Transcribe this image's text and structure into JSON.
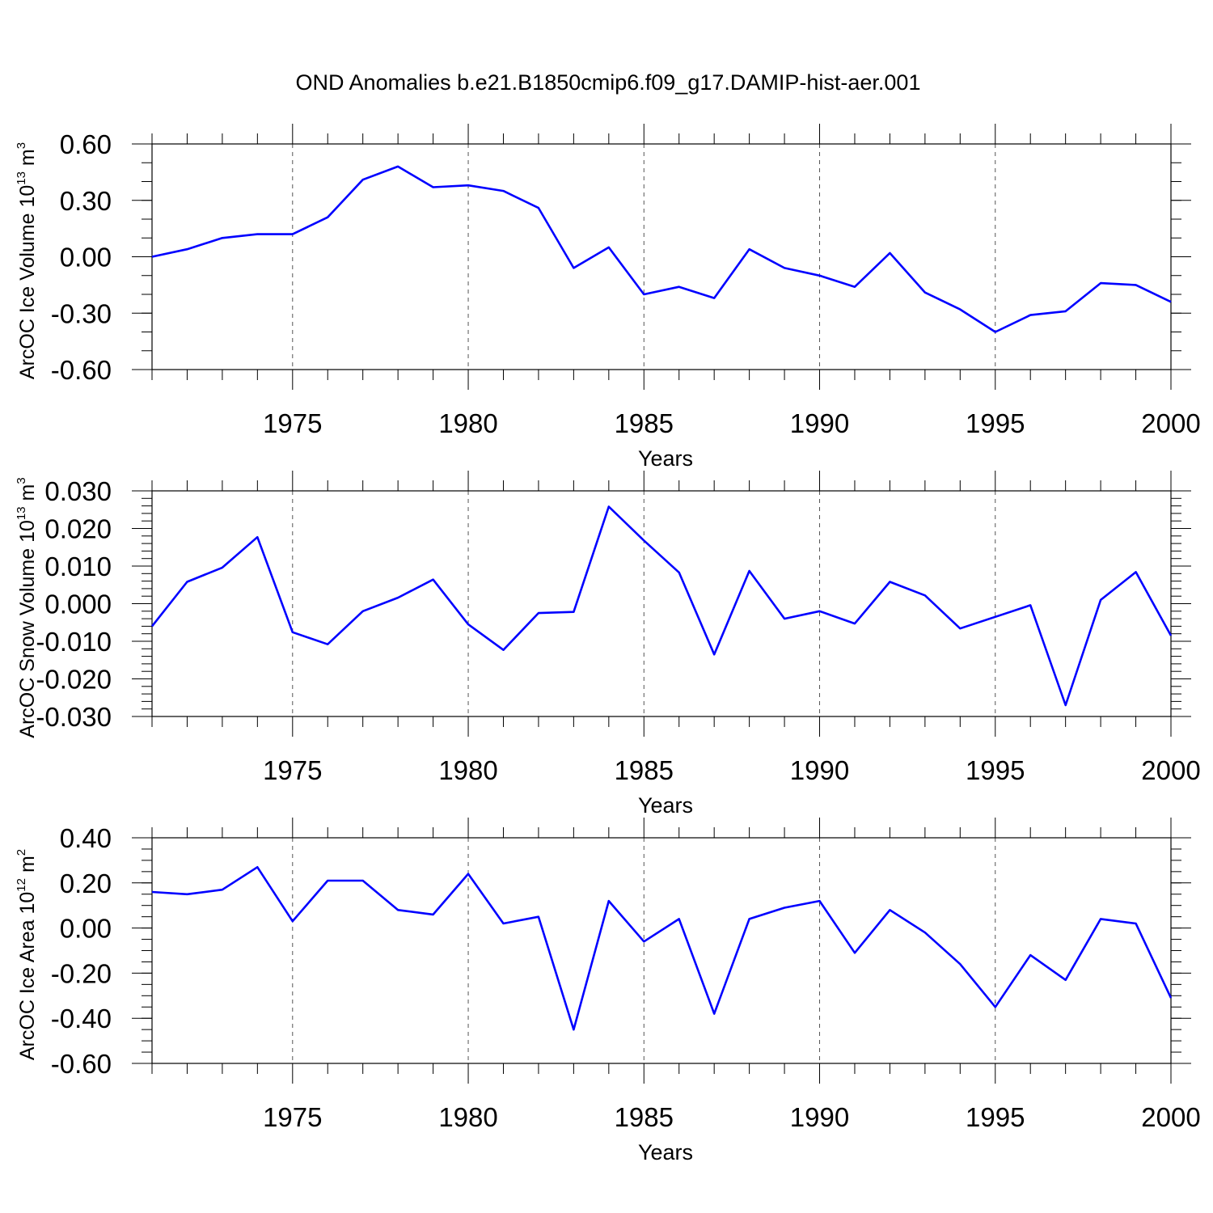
{
  "title": "OND Anomalies b.e21.B1850cmip6.f09_g17.DAMIP-hist-aer.001",
  "chart_data": [
    {
      "type": "line",
      "ylabel": "ArcOC Ice Volume 10",
      "ylabel_sup_exp": "13",
      "ylabel_unit": " m",
      "ylabel_sup_unit": "3",
      "xlabel": "Years",
      "xlim": [
        1971,
        2000
      ],
      "ylim": [
        -0.6,
        0.6
      ],
      "yticks": [
        -0.6,
        -0.3,
        0.0,
        0.3,
        0.6
      ],
      "yticklabels": [
        "-0.60",
        "-0.30",
        "0.00",
        "0.30",
        "0.60"
      ],
      "yminor": 0.1,
      "xticks": [
        1975,
        1980,
        1985,
        1990,
        1995,
        2000
      ],
      "xticklabels": [
        "1975",
        "1980",
        "1985",
        "1990",
        "1995",
        "2000"
      ],
      "grid": "dashed vertical at major x ticks",
      "series_color": "#0000ff",
      "x": [
        1971,
        1972,
        1973,
        1974,
        1975,
        1976,
        1977,
        1978,
        1979,
        1980,
        1981,
        1982,
        1983,
        1984,
        1985,
        1986,
        1987,
        1988,
        1989,
        1990,
        1991,
        1992,
        1993,
        1994,
        1995,
        1996,
        1997,
        1998,
        1999,
        2000
      ],
      "values": [
        0.0,
        0.04,
        0.1,
        0.12,
        0.12,
        0.21,
        0.41,
        0.48,
        0.37,
        0.38,
        0.35,
        0.26,
        -0.06,
        0.05,
        -0.2,
        -0.16,
        -0.22,
        0.04,
        -0.06,
        -0.1,
        -0.16,
        0.02,
        -0.19,
        -0.28,
        -0.4,
        -0.31,
        -0.29,
        -0.14,
        -0.15,
        -0.24
      ]
    },
    {
      "type": "line",
      "ylabel": "ArcOC Snow Volume 10",
      "ylabel_sup_exp": "13",
      "ylabel_unit": " m",
      "ylabel_sup_unit": "3",
      "xlabel": "Years",
      "xlim": [
        1971,
        2000
      ],
      "ylim": [
        -0.03,
        0.03
      ],
      "yticks": [
        -0.03,
        -0.02,
        -0.01,
        0.0,
        0.01,
        0.02,
        0.03
      ],
      "yticklabels": [
        "-0.030",
        "-0.020",
        "-0.010",
        "0.000",
        "0.010",
        "0.020",
        "0.030"
      ],
      "yminor": 0.002,
      "xticks": [
        1975,
        1980,
        1985,
        1990,
        1995,
        2000
      ],
      "xticklabels": [
        "1975",
        "1980",
        "1985",
        "1990",
        "1995",
        "2000"
      ],
      "grid": "dashed vertical at major x ticks",
      "series_color": "#0000ff",
      "x": [
        1971,
        1972,
        1973,
        1974,
        1975,
        1976,
        1977,
        1978,
        1979,
        1980,
        1981,
        1982,
        1983,
        1984,
        1985,
        1986,
        1987,
        1988,
        1989,
        1990,
        1991,
        1992,
        1993,
        1994,
        1995,
        1996,
        1997,
        1998,
        1999,
        2000
      ],
      "values": [
        -0.006,
        0.0058,
        0.0096,
        0.0177,
        -0.0076,
        -0.0108,
        -0.002,
        0.0016,
        0.0064,
        -0.0055,
        -0.0123,
        -0.0025,
        -0.0022,
        0.0258,
        0.0168,
        0.0083,
        -0.0135,
        0.0087,
        -0.004,
        -0.002,
        -0.0053,
        0.0058,
        0.0022,
        -0.0066,
        -0.0035,
        -0.0004,
        -0.027,
        0.001,
        0.0084,
        -0.0085
      ]
    },
    {
      "type": "line",
      "ylabel": "ArcOC Ice Area 10",
      "ylabel_sup_exp": "12",
      "ylabel_unit": " m",
      "ylabel_sup_unit": "2",
      "xlabel": "Years",
      "xlim": [
        1971,
        2000
      ],
      "ylim": [
        -0.6,
        0.4
      ],
      "yticks": [
        -0.6,
        -0.4,
        -0.2,
        0.0,
        0.2,
        0.4
      ],
      "yticklabels": [
        "-0.60",
        "-0.40",
        "-0.20",
        "0.00",
        "0.20",
        "0.40"
      ],
      "yminor": 0.05,
      "xticks": [
        1975,
        1980,
        1985,
        1990,
        1995,
        2000
      ],
      "xticklabels": [
        "1975",
        "1980",
        "1985",
        "1990",
        "1995",
        "2000"
      ],
      "grid": "dashed vertical at major x ticks",
      "series_color": "#0000ff",
      "x": [
        1971,
        1972,
        1973,
        1974,
        1975,
        1976,
        1977,
        1978,
        1979,
        1980,
        1981,
        1982,
        1983,
        1984,
        1985,
        1986,
        1987,
        1988,
        1989,
        1990,
        1991,
        1992,
        1993,
        1994,
        1995,
        1996,
        1997,
        1998,
        1999,
        2000
      ],
      "values": [
        0.16,
        0.15,
        0.17,
        0.27,
        0.03,
        0.21,
        0.21,
        0.08,
        0.06,
        0.24,
        0.02,
        0.05,
        -0.45,
        0.12,
        -0.06,
        0.04,
        -0.38,
        0.04,
        0.09,
        0.12,
        -0.11,
        0.08,
        -0.02,
        -0.16,
        -0.35,
        -0.12,
        -0.23,
        0.04,
        0.02,
        -0.31
      ]
    }
  ]
}
